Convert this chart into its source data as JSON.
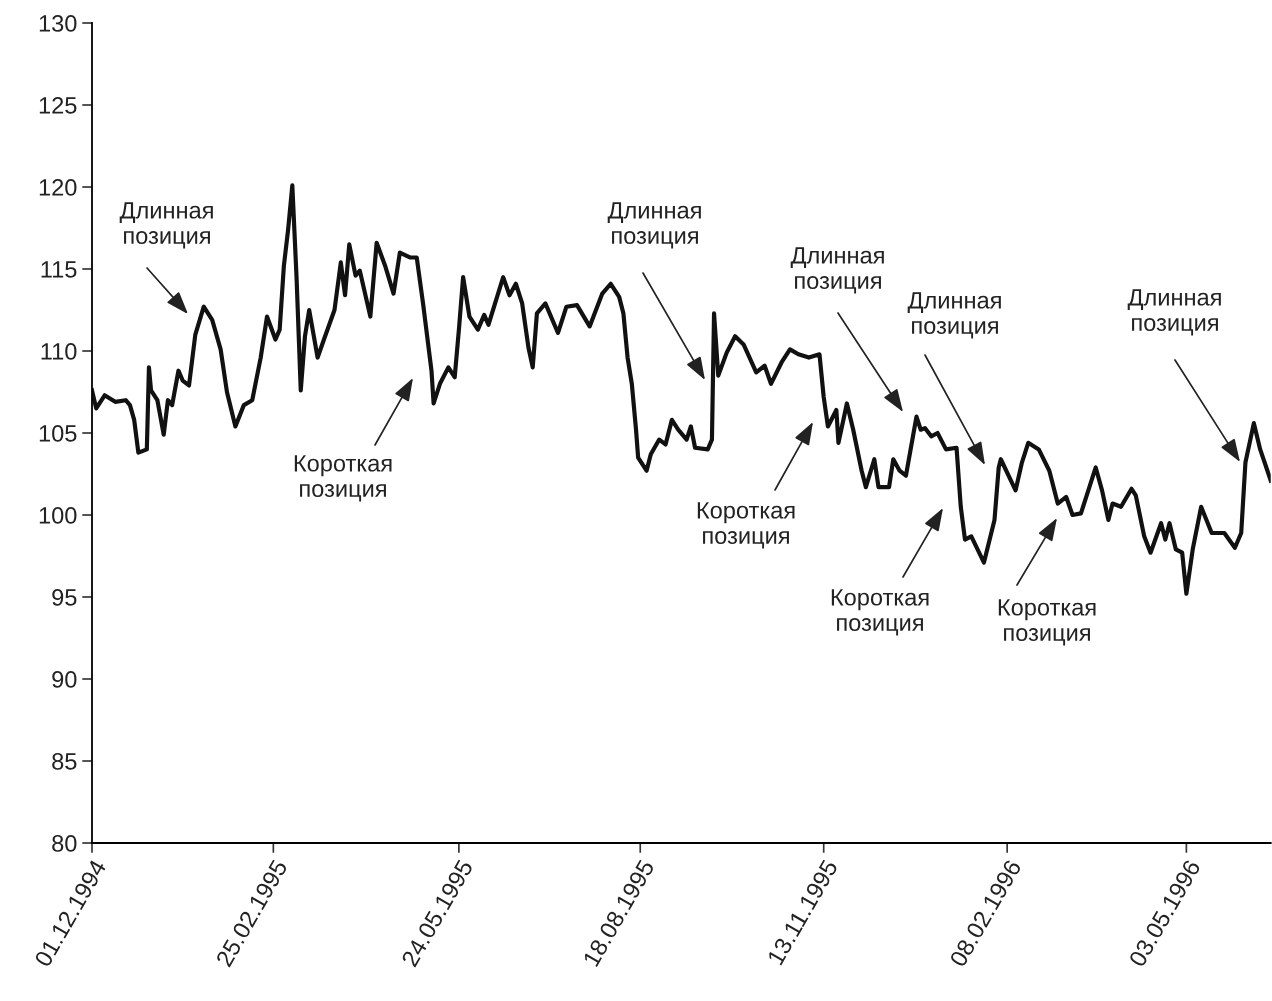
{
  "chart_data": {
    "type": "line",
    "x": [
      "1994-12-01",
      "1994-12-03",
      "1994-12-07",
      "1994-12-12",
      "1994-12-17",
      "1994-12-19",
      "1994-12-21",
      "1994-12-23",
      "1994-12-27",
      "1994-12-28",
      "1994-12-29",
      "1995-01-01",
      "1995-01-04",
      "1995-01-06",
      "1995-01-08",
      "1995-01-11",
      "1995-01-13",
      "1995-01-16",
      "1995-01-19",
      "1995-01-23",
      "1995-01-27",
      "1995-01-31",
      "1995-02-03",
      "1995-02-07",
      "1995-02-11",
      "1995-02-15",
      "1995-02-19",
      "1995-02-22",
      "1995-02-26",
      "1995-02-28",
      "1995-03-02",
      "1995-03-04",
      "1995-03-06",
      "1995-03-08",
      "1995-03-10",
      "1995-03-12",
      "1995-03-14",
      "1995-03-18",
      "1995-03-21",
      "1995-03-26",
      "1995-03-29",
      "1995-03-31",
      "1995-04-02",
      "1995-04-05",
      "1995-04-07",
      "1995-04-12",
      "1995-04-15",
      "1995-04-19",
      "1995-04-23",
      "1995-04-26",
      "1995-05-01",
      "1995-05-04",
      "1995-05-07",
      "1995-05-11",
      "1995-05-12",
      "1995-05-15",
      "1995-05-19",
      "1995-05-22",
      "1995-05-24",
      "1995-05-26",
      "1995-05-29",
      "1995-06-02",
      "1995-06-05",
      "1995-06-07",
      "1995-06-14",
      "1995-06-17",
      "1995-06-20",
      "1995-06-23",
      "1995-06-26",
      "1995-06-28",
      "1995-06-30",
      "1995-07-04",
      "1995-07-10",
      "1995-07-14",
      "1995-07-19",
      "1995-07-25",
      "1995-07-28",
      "1995-07-31",
      "1995-08-04",
      "1995-08-08",
      "1995-08-10",
      "1995-08-12",
      "1995-08-14",
      "1995-08-16",
      "1995-08-17",
      "1995-08-21",
      "1995-08-23",
      "1995-08-27",
      "1995-08-30",
      "1995-09-02",
      "1995-09-05",
      "1995-09-09",
      "1995-09-11",
      "1995-09-13",
      "1995-09-19",
      "1995-09-21",
      "1995-09-22",
      "1995-09-24",
      "1995-09-28",
      "1995-10-02",
      "1995-10-06",
      "1995-10-12",
      "1995-10-16",
      "1995-10-19",
      "1995-10-24",
      "1995-10-28",
      "1995-11-01",
      "1995-11-06",
      "1995-11-11",
      "1995-11-13",
      "1995-11-15",
      "1995-11-19",
      "1995-11-20",
      "1995-11-24",
      "1995-11-27",
      "1995-12-01",
      "1995-12-03",
      "1995-12-07",
      "1995-12-09",
      "1995-12-14",
      "1995-12-16",
      "1995-12-19",
      "1995-12-22",
      "1995-12-27",
      "1995-12-29",
      "1995-12-31",
      "1996-01-03",
      "1996-01-06",
      "1996-01-10",
      "1996-01-15",
      "1996-01-17",
      "1996-01-19",
      "1996-01-22",
      "1996-01-28",
      "1996-02-02",
      "1996-02-04",
      "1996-02-05",
      "1996-02-12",
      "1996-02-15",
      "1996-02-18",
      "1996-02-23",
      "1996-02-28",
      "1996-03-03",
      "1996-03-07",
      "1996-03-10",
      "1996-03-14",
      "1996-03-18",
      "1996-03-21",
      "1996-03-24",
      "1996-03-27",
      "1996-03-29",
      "1996-04-02",
      "1996-04-07",
      "1996-04-09",
      "1996-04-13",
      "1996-04-16",
      "1996-04-21",
      "1996-04-23",
      "1996-04-25",
      "1996-04-28",
      "1996-05-01",
      "1996-05-03",
      "1996-05-06",
      "1996-05-10",
      "1996-05-15",
      "1996-05-21",
      "1996-05-26",
      "1996-05-29",
      "1996-05-31",
      "1996-06-04",
      "1996-06-07",
      "1996-06-12"
    ],
    "series": [
      {
        "color": "#111111",
        "values": [
          107.6,
          106.5,
          107.3,
          106.9,
          107.0,
          106.7,
          105.8,
          103.8,
          104.0,
          109.0,
          107.6,
          107.0,
          104.9,
          107.0,
          106.7,
          108.8,
          108.2,
          107.9,
          111.0,
          112.7,
          111.9,
          110.1,
          107.5,
          105.4,
          106.7,
          107.0,
          109.6,
          112.1,
          110.7,
          111.3,
          115.2,
          117.4,
          120.1,
          114.5,
          107.6,
          110.9,
          112.5,
          109.6,
          110.7,
          112.5,
          115.4,
          113.4,
          116.5,
          114.6,
          114.9,
          112.1,
          116.6,
          115.2,
          113.5,
          116.0,
          115.7,
          115.7,
          112.9,
          108.8,
          106.8,
          108.0,
          109.0,
          108.4,
          111.3,
          114.5,
          112.1,
          111.3,
          112.2,
          111.6,
          114.5,
          113.4,
          114.1,
          112.9,
          110.2,
          109.0,
          112.3,
          112.9,
          111.1,
          112.7,
          112.8,
          111.5,
          112.5,
          113.5,
          114.1,
          113.3,
          112.3,
          109.6,
          108.0,
          105.2,
          103.5,
          102.7,
          103.7,
          104.6,
          104.3,
          105.8,
          105.2,
          104.6,
          105.4,
          104.1,
          104.0,
          104.6,
          112.3,
          108.5,
          109.9,
          110.9,
          110.4,
          108.7,
          109.1,
          108.0,
          109.3,
          110.1,
          109.8,
          109.6,
          109.8,
          107.2,
          105.4,
          106.4,
          104.4,
          106.8,
          105.2,
          102.7,
          101.7,
          103.4,
          101.7,
          101.7,
          103.4,
          102.7,
          102.4,
          106.0,
          105.2,
          105.3,
          104.8,
          105.0,
          104.0,
          104.1,
          100.5,
          98.5,
          98.7,
          97.1,
          99.7,
          102.9,
          103.4,
          101.5,
          103.2,
          104.4,
          104.0,
          102.7,
          100.7,
          101.1,
          100.0,
          100.1,
          101.7,
          102.9,
          101.5,
          99.7,
          100.7,
          100.5,
          101.6,
          101.2,
          98.7,
          97.7,
          99.5,
          98.5,
          99.5,
          97.9,
          97.7,
          95.2,
          97.9,
          100.5,
          98.9,
          98.9,
          98.0,
          98.9,
          103.2,
          105.6,
          104.0,
          102.1
        ]
      }
    ],
    "xlim": [
      "1994-12-01",
      "1996-06-12"
    ],
    "xticks": [
      {
        "value": "1994-12-01",
        "label": "01.12.1994"
      },
      {
        "value": "1995-02-25",
        "label": "25.02.1995"
      },
      {
        "value": "1995-05-24",
        "label": "24.05.1995"
      },
      {
        "value": "1995-08-18",
        "label": "18.08.1995"
      },
      {
        "value": "1995-11-13",
        "label": "13.11.1995"
      },
      {
        "value": "1996-02-08",
        "label": "08.02.1996"
      },
      {
        "value": "1996-05-03",
        "label": "03.05.1996"
      }
    ],
    "ylim": [
      80,
      130
    ],
    "yticks": [
      80,
      85,
      90,
      95,
      100,
      105,
      110,
      115,
      120,
      125,
      130
    ],
    "grid": false,
    "legend": false,
    "line_style": "solid",
    "marker": "none",
    "annotations": [
      "Длинная\nпозиция",
      "Короткая\nпозиция",
      "Длинная\nпозиция",
      "Короткая\nпозиция",
      "Длинная\nпозиция",
      "Длинная\nпозиция",
      "Короткая\nпозиция",
      "Короткая\nпозиция",
      "Длинная\nпозиция"
    ]
  }
}
